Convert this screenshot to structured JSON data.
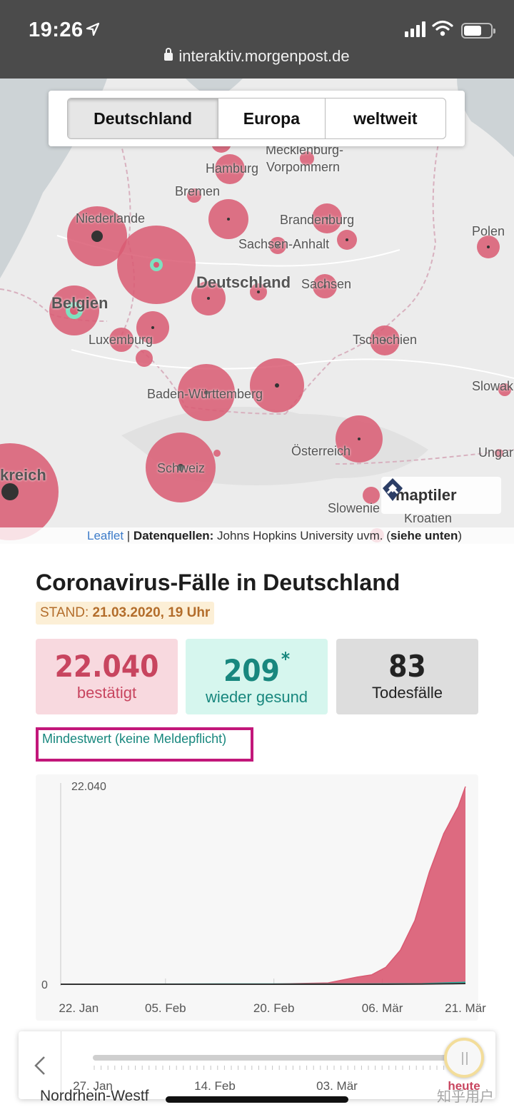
{
  "status_bar": {
    "time": "19:26"
  },
  "browser": {
    "url": "interaktiv.morgenpost.de"
  },
  "tabs": [
    "Deutschland",
    "Europa",
    "weltweit"
  ],
  "active_tab": "Deutschland",
  "map": {
    "labels": {
      "mecklenburg": "Mecklenburg-",
      "vorpommern": "Vorpommern",
      "hamburg": "Hamburg",
      "bremen": "Bremen",
      "niederlande": "Niederlande",
      "brandenburg": "Brandenburg",
      "polen": "Polen",
      "sachsen_anhalt": "Sachsen-Anhalt",
      "deutschland": "Deutschland",
      "sachsen": "Sachsen",
      "belgien": "Belgien",
      "luxemburg": "Luxemburg",
      "tschechien": "Tschechien",
      "baden_wuerttemberg": "Baden-Württemberg",
      "slowakei": "Slowak",
      "oesterreich": "Österreich",
      "ungarn": "Ungar",
      "frankreich": "kreich",
      "schweiz": "Schweiz",
      "slowenien": "Slowenie",
      "kroatien": "Kroatien"
    },
    "logo_text": "maptiler",
    "attribution": {
      "leaflet": "Leaflet",
      "separator": " | ",
      "sources_label": "Datenquellen:",
      "sources_text": " Johns Hopkins University uvm. (",
      "see_below": "siehe unten",
      "close": ")"
    }
  },
  "heading": "Coronavirus-Fälle in Deutschland",
  "stand": {
    "label": "STAND: ",
    "value": "21.03.2020, 19 Uhr"
  },
  "stats": {
    "confirmed": {
      "value": "22.040",
      "label": "bestätigt"
    },
    "recovered": {
      "value": "209",
      "asterisk": "*",
      "label": "wieder gesund"
    },
    "deaths": {
      "value": "83",
      "label": "Todesfälle"
    }
  },
  "footnote": "Mindestwert (keine Meldepflicht)",
  "colors": {
    "confirmed": "#d95a72",
    "recovered": "#2cb3a3",
    "deaths": "#333333",
    "highlight": "#c2177a"
  },
  "chart_data": {
    "type": "area",
    "x": [
      "22. Jan",
      "05. Feb",
      "20. Feb",
      "06. Mär",
      "21. Mär"
    ],
    "y_ticks": [
      "0",
      "22.040"
    ],
    "ylim": [
      0,
      22040
    ],
    "series": [
      {
        "name": "bestätigt",
        "color": "#d95a72",
        "points": [
          [
            0,
            0
          ],
          [
            14,
            12
          ],
          [
            29,
            16
          ],
          [
            37,
            150
          ],
          [
            41,
            795
          ],
          [
            43,
            1040
          ],
          [
            45,
            1900
          ],
          [
            47,
            3800
          ],
          [
            49,
            7100
          ],
          [
            51,
            12500
          ],
          [
            53,
            16800
          ],
          [
            55,
            19800
          ],
          [
            56,
            22040
          ]
        ]
      },
      {
        "name": "wieder gesund",
        "color": "#2cb3a3",
        "points": [
          [
            0,
            0
          ],
          [
            22,
            14
          ],
          [
            40,
            16
          ],
          [
            50,
            50
          ],
          [
            56,
            209
          ]
        ]
      },
      {
        "name": "Todesfälle",
        "color": "#333333",
        "points": [
          [
            0,
            0
          ],
          [
            45,
            2
          ],
          [
            50,
            13
          ],
          [
            53,
            44
          ],
          [
            56,
            83
          ]
        ]
      }
    ]
  },
  "timeline": {
    "labels": [
      "27. Jan",
      "14. Feb",
      "03. Mär",
      "heute"
    ]
  },
  "peek_text": "Nordrhein-Westf",
  "watermark": "知乎用户"
}
